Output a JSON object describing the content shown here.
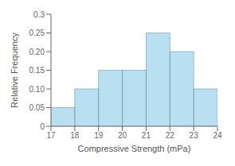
{
  "chart_data": {
    "type": "histogram",
    "bins": [
      17,
      18,
      19,
      20,
      21,
      22,
      23,
      24
    ],
    "values": [
      0.05,
      0.1,
      0.15,
      0.15,
      0.25,
      0.2,
      0.1
    ],
    "color": "#b8e0f0",
    "xlabel": "Compressive Strength (mPa)",
    "ylabel": "Relative Frequency",
    "xlim": [
      17,
      24
    ],
    "ylim": [
      0,
      0.3
    ],
    "xticks": [
      17,
      18,
      19,
      20,
      21,
      22,
      23,
      24
    ],
    "yticks": [
      0,
      0.05,
      {
        "value": 0.1,
        "label": "0.10"
      },
      0.15,
      {
        "value": 0.2,
        "label": "0.20"
      },
      0.25,
      0.3
    ]
  }
}
